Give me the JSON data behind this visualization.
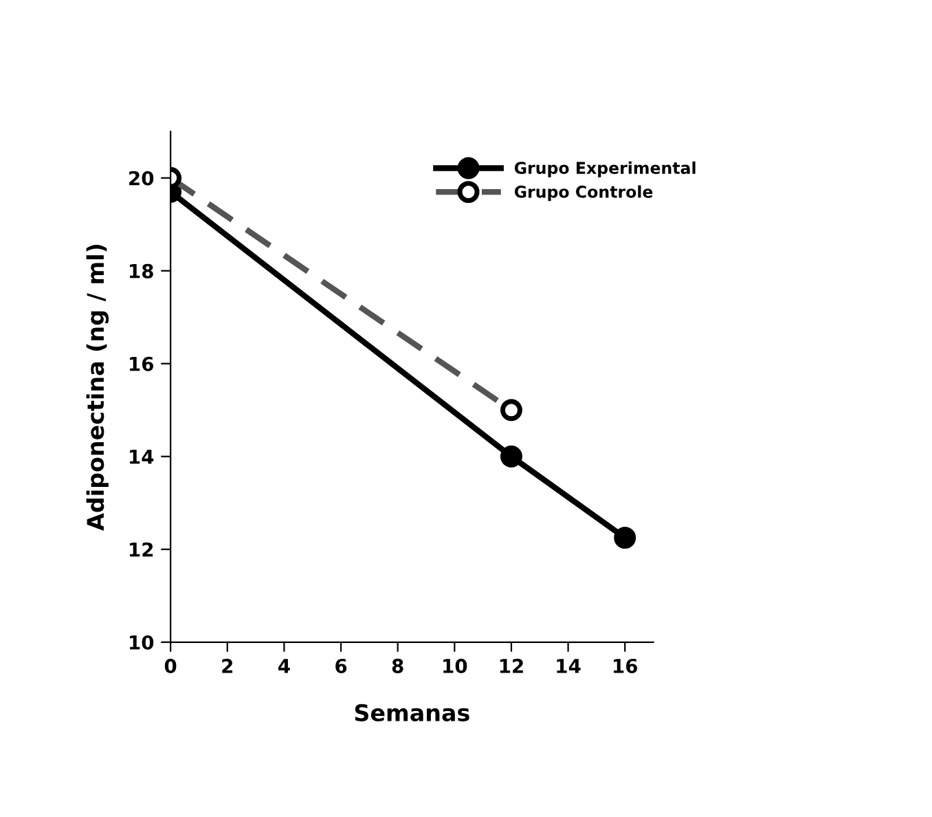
{
  "chart_data": {
    "type": "line",
    "xlabel": "Semanas",
    "ylabel": "Adiponectina (ng / ml)",
    "xlim": [
      0,
      17
    ],
    "xticks": [
      0,
      2,
      4,
      6,
      8,
      10,
      12,
      14,
      16
    ],
    "ylim": [
      10,
      21
    ],
    "yticks": [
      10,
      12,
      14,
      16,
      18,
      20
    ],
    "grid": false,
    "legend": "top right",
    "series": [
      {
        "name": "Grupo Experimental",
        "color": "#000000",
        "x": [
          0,
          12,
          16
        ],
        "values": [
          19.7,
          14.0,
          12.25
        ],
        "line_style": "solid",
        "marker": "circle"
      },
      {
        "name": "Grupo Controle",
        "color": "#555555",
        "x": [
          0,
          12
        ],
        "values": [
          20.0,
          15.0
        ],
        "line_style": "dashed",
        "marker": "circle"
      }
    ]
  }
}
